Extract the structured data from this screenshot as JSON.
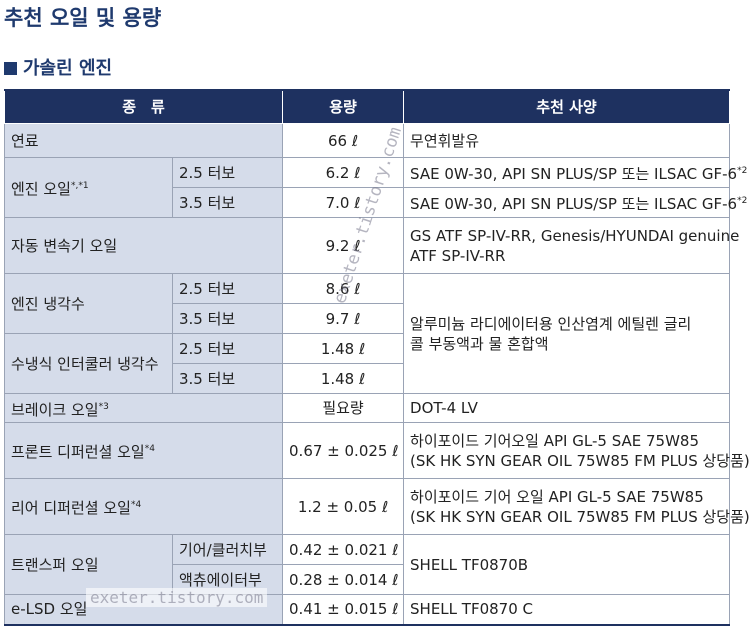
{
  "title": "추천 오일 및 용량",
  "section": "가솔린 엔진",
  "table": {
    "header": [
      "종　류",
      "용량",
      "추천 사양"
    ],
    "rows": [
      {
        "name": "연료",
        "capacity": "66 ℓ",
        "spec": [
          "무연휘발유"
        ]
      },
      {
        "name": "엔진 오일",
        "note": "*,*1",
        "subs": [
          {
            "sub": "2.5 터보",
            "capacity": "6.2 ℓ",
            "spec": "SAE 0W-30, API SN PLUS/SP 또는 ILSAC GF-6",
            "specnote": "*2"
          },
          {
            "sub": "3.5 터보",
            "capacity": "7.0 ℓ",
            "spec": "SAE 0W-30, API SN PLUS/SP 또는 ILSAC GF-6",
            "specnote": "*2"
          }
        ]
      },
      {
        "name": "자동 변속기 오일",
        "capacity": "9.2 ℓ",
        "spec": [
          "GS ATF SP-IV-RR, Genesis/HYUNDAI genuine",
          "ATF SP-IV-RR"
        ]
      },
      {
        "name": "엔진 냉각수",
        "subs": [
          {
            "sub": "2.5 터보",
            "capacity": "8.6 ℓ"
          },
          {
            "sub": "3.5 터보",
            "capacity": "9.7 ℓ"
          }
        ]
      },
      {
        "name": "수냉식 인터쿨러 냉각수",
        "subs": [
          {
            "sub": "2.5 터보",
            "capacity": "1.48 ℓ"
          },
          {
            "sub": "3.5 터보",
            "capacity": "1.48 ℓ"
          }
        ]
      },
      {
        "name": "브레이크 오일",
        "note": "*3",
        "capacity": "필요량",
        "spec": [
          "DOT-4 LV"
        ]
      },
      {
        "name": "프론트 디퍼런셜 오일",
        "note": "*4",
        "capacity": "0.67 ± 0.025 ℓ",
        "spec": [
          "하이포이드 기어오일 API GL-5 SAE 75W85",
          "(SK HK SYN GEAR OIL 75W85 FM PLUS 상당품)"
        ]
      },
      {
        "name": "리어 디퍼런셜 오일",
        "note": "*4",
        "capacity": "1.2 ± 0.05 ℓ",
        "spec": [
          "하이포이드 기어 오일 API GL-5 SAE 75W85",
          "(SK HK SYN GEAR OIL 75W85 FM PLUS 상당품)"
        ]
      },
      {
        "name": "트랜스퍼 오일",
        "subs": [
          {
            "sub": "기어/클러치부",
            "capacity": "0.42 ± 0.021 ℓ"
          },
          {
            "sub": "액츄에이터부",
            "capacity": "0.28 ± 0.014 ℓ"
          }
        ],
        "spec": [
          "SHELL TF0870B"
        ]
      },
      {
        "name": "e-LSD 오일",
        "capacity": "0.41 ± 0.015 ℓ",
        "spec": [
          "SHELL TF0870 C"
        ]
      }
    ],
    "coolant_spec": [
      "알루미늄 라디에이터용 인산염계 에틸렌 글리",
      "콜 부동액과 물 혼합액"
    ]
  },
  "watermark": "exeter.tistory.com"
}
